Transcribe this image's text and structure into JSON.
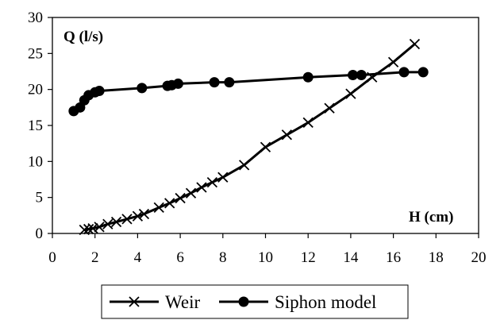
{
  "chart_data": {
    "type": "line",
    "title": "",
    "xlabel": "H (cm)",
    "ylabel": "Q (l/s)",
    "xlim": [
      0,
      20
    ],
    "ylim": [
      0,
      30
    ],
    "xticks": [
      0,
      2,
      4,
      6,
      8,
      10,
      12,
      14,
      16,
      18,
      20
    ],
    "yticks": [
      0,
      5,
      10,
      15,
      20,
      25,
      30
    ],
    "grid": false,
    "legend_position": "bottom",
    "series": [
      {
        "name": "Weir",
        "marker": "x",
        "color": "#000000",
        "x": [
          1.5,
          1.7,
          1.9,
          2.2,
          2.6,
          3.0,
          3.5,
          4.0,
          4.3,
          5.0,
          5.5,
          6.0,
          6.5,
          7.0,
          7.5,
          8.0,
          9.0,
          10.0,
          11.0,
          12.0,
          13.0,
          14.0,
          15.0,
          16.0,
          17.0
        ],
        "y": [
          0.5,
          0.6,
          0.7,
          0.9,
          1.3,
          1.6,
          2.0,
          2.4,
          2.7,
          3.6,
          4.2,
          4.9,
          5.6,
          6.4,
          7.1,
          7.8,
          9.5,
          12.0,
          13.7,
          15.4,
          17.4,
          19.4,
          21.7,
          23.8,
          26.3
        ]
      },
      {
        "name": "Siphon model",
        "marker": "circle",
        "color": "#000000",
        "x": [
          1.0,
          1.3,
          1.5,
          1.7,
          2.0,
          2.2,
          4.2,
          5.4,
          5.6,
          5.9,
          7.6,
          8.3,
          12.0,
          14.1,
          14.5,
          16.5,
          17.4
        ],
        "y": [
          17.0,
          17.5,
          18.5,
          19.2,
          19.6,
          19.8,
          20.2,
          20.5,
          20.6,
          20.8,
          21.0,
          21.0,
          21.7,
          22.0,
          22.0,
          22.4,
          22.4
        ]
      }
    ]
  }
}
